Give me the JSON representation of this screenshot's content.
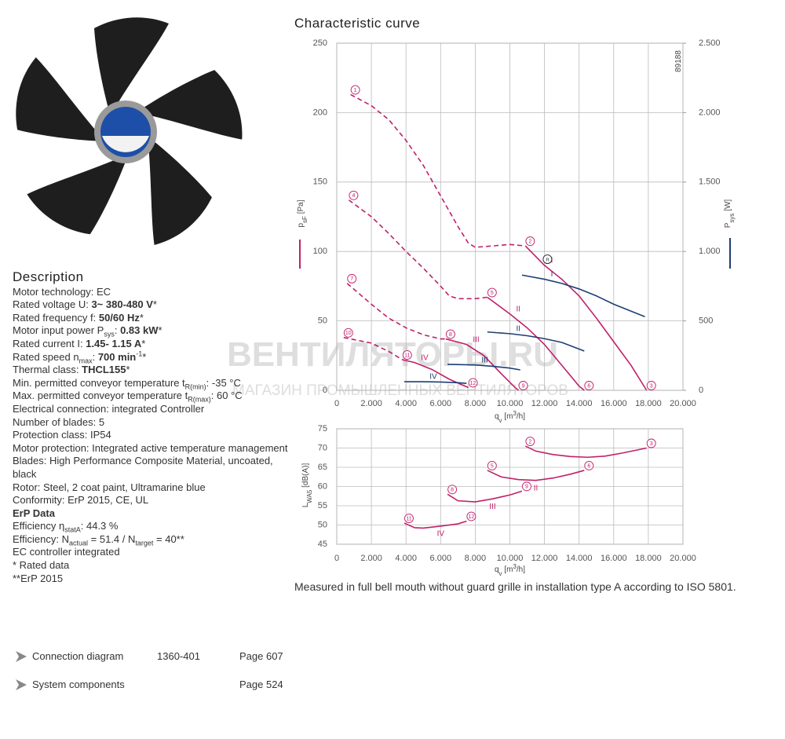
{
  "description": {
    "title": "Description",
    "lines": [
      {
        "parts": [
          {
            "t": "Motor technology: EC"
          }
        ]
      },
      {
        "parts": [
          {
            "t": "Rated voltage U: "
          },
          {
            "t": "3~ 380-480 V",
            "f": "b"
          },
          {
            "t": "*"
          }
        ]
      },
      {
        "parts": [
          {
            "t": "Rated frequency f: "
          },
          {
            "t": "50/60 Hz",
            "f": "b"
          },
          {
            "t": "*"
          }
        ]
      },
      {
        "parts": [
          {
            "t": "Motor input power P"
          },
          {
            "t": "sys",
            "f": "sub"
          },
          {
            "t": ": "
          },
          {
            "t": "0.83 kW",
            "f": "b"
          },
          {
            "t": "*"
          }
        ]
      },
      {
        "parts": [
          {
            "t": "Rated current I: "
          },
          {
            "t": "1.45- 1.15 A",
            "f": "b"
          },
          {
            "t": "*"
          }
        ]
      },
      {
        "parts": [
          {
            "t": "Rated speed n"
          },
          {
            "t": "max",
            "f": "sub"
          },
          {
            "t": ": "
          },
          {
            "t": "700 min",
            "f": "b"
          },
          {
            "t": "-1",
            "f": "sup"
          },
          {
            "t": "*"
          }
        ]
      },
      {
        "parts": [
          {
            "t": "Thermal class: "
          },
          {
            "t": "THCL155",
            "f": "b"
          },
          {
            "t": "*"
          }
        ]
      },
      {
        "parts": [
          {
            "t": "Min. permitted conveyor temperature t"
          },
          {
            "t": "R(min)",
            "f": "sub"
          },
          {
            "t": ": -35  °C"
          }
        ]
      },
      {
        "parts": [
          {
            "t": "Max. permitted conveyor temperature t"
          },
          {
            "t": "R(max)",
            "f": "sub"
          },
          {
            "t": ": 60  °C"
          }
        ]
      },
      {
        "parts": [
          {
            "t": "Electrical connection: integrated Controller"
          }
        ]
      },
      {
        "parts": [
          {
            "t": "Number of blades: 5"
          }
        ]
      },
      {
        "parts": [
          {
            "t": "Protection class: IP54"
          }
        ]
      },
      {
        "parts": [
          {
            "t": "Motor protection: Integrated active temperature management"
          }
        ]
      },
      {
        "parts": [
          {
            "t": "Blades: High Performance Composite Material, uncoated, black"
          }
        ]
      },
      {
        "parts": [
          {
            "t": "Rotor: Steel, 2 coat paint, Ultramarine blue"
          }
        ]
      },
      {
        "parts": [
          {
            "t": "Conformity: ErP 2015, CE, UL"
          }
        ]
      },
      {
        "parts": [
          {
            "t": "ErP Data",
            "f": "b"
          }
        ]
      },
      {
        "parts": [
          {
            "t": "Efficiency η"
          },
          {
            "t": "statA",
            "f": "sub"
          },
          {
            "t": ": 44.3 %"
          }
        ]
      },
      {
        "parts": [
          {
            "t": "Efficiency: N"
          },
          {
            "t": "actual",
            "f": "sub"
          },
          {
            "t": " = 51.4 / N"
          },
          {
            "t": "target",
            "f": "sub"
          },
          {
            "t": " = 40**"
          }
        ]
      },
      {
        "parts": [
          {
            "t": "EC controller integrated"
          }
        ]
      },
      {
        "parts": [
          {
            "t": "* Rated data"
          }
        ]
      },
      {
        "parts": [
          {
            "t": "**ErP 2015"
          }
        ]
      }
    ]
  },
  "links": [
    {
      "label": "Connection diagram",
      "code": "1360-401",
      "page": "Page 607"
    },
    {
      "label": "System components",
      "page": "Page 524"
    }
  ],
  "watermark": {
    "brand": "ВЕНТИЛЯТОРЫ.RU",
    "tagline": "МАГАЗИН ПРОМЫШЛЕННЫХ ВЕНТИЛЯТОРОВ"
  },
  "note": "Measured in full bell mouth without guard grille in installation type A according to ISO 5801.",
  "chart_data": [
    {
      "type": "line",
      "title": "Characteristic curve",
      "code": "89188",
      "xlabel": [
        {
          "t": "q"
        },
        {
          "t": "v",
          "f": "sub"
        },
        {
          "t": " [m"
        },
        {
          "t": "3",
          "f": "sup"
        },
        {
          "t": "/h]"
        }
      ],
      "ylabel": [
        {
          "t": "p"
        },
        {
          "t": "sF",
          "f": "sub"
        },
        {
          "t": " [Pa]"
        }
      ],
      "ylabel_color": "#c0206a",
      "y2label": [
        {
          "t": "P"
        },
        {
          "t": "sys",
          "f": "sub"
        },
        {
          "t": " [W]"
        }
      ],
      "y2label_color": "#1f3f73",
      "grid": true,
      "xlim": [
        0,
        20000
      ],
      "xticks": [
        0,
        {
          "value": 2000,
          "label": "2.000"
        },
        {
          "value": 4000,
          "label": "4.000"
        },
        {
          "value": 6000,
          "label": "6.000"
        },
        {
          "value": 8000,
          "label": "8.000"
        },
        {
          "value": 10000,
          "label": "10.000"
        },
        {
          "value": 12000,
          "label": "12.000"
        },
        {
          "value": 14000,
          "label": "14.000"
        },
        {
          "value": 16000,
          "label": "16.000"
        },
        {
          "value": 18000,
          "label": "18.000"
        },
        {
          "value": 20000,
          "label": "20.000"
        }
      ],
      "ylim": [
        0,
        250
      ],
      "yticks": [
        0,
        50,
        100,
        150,
        200,
        250
      ],
      "y2lim": [
        0,
        2500
      ],
      "y2ticks": [
        0,
        500,
        {
          "value": 1000,
          "label": "1.000"
        },
        {
          "value": 1500,
          "label": "1.500"
        },
        {
          "value": 2000,
          "label": "2.000"
        },
        {
          "value": 2500,
          "label": "2.500"
        }
      ],
      "series": [
        {
          "name": "I",
          "color": "#c0206a",
          "segments": [
            {
              "style": "dashed",
              "x": [
                800,
                2000,
                3000,
                4000,
                5000,
                6000,
                7000,
                7600,
                8000,
                9000,
                10000,
                10900
              ],
              "values": [
                213,
                205,
                195,
                180,
                162,
                140,
                118,
                106,
                103,
                104,
                105,
                104
              ]
            },
            {
              "style": "solid",
              "x": [
                10900,
                12000,
                13000,
                14000,
                15000,
                16000,
                17000,
                17900
              ],
              "values": [
                104,
                90,
                80,
                68,
                52,
                35,
                18,
                0
              ]
            }
          ],
          "points": [
            {
              "label": "1",
              "x": 800,
              "value": 213
            },
            {
              "label": "2",
              "x": 10900,
              "value": 104
            },
            {
              "label": "n",
              "x": 11900,
              "value": 91,
              "color": "#222"
            },
            {
              "label": "3",
              "x": 17900,
              "value": 0
            }
          ]
        },
        {
          "name": "II",
          "color": "#c0206a",
          "segments": [
            {
              "style": "dashed",
              "x": [
                700,
                2000,
                3000,
                4000,
                5000,
                6000,
                6500,
                7000,
                8000,
                8700
              ],
              "values": [
                137,
                125,
                113,
                100,
                88,
                75,
                68,
                66,
                66,
                67
              ]
            },
            {
              "style": "solid",
              "x": [
                8700,
                10000,
                11000,
                12000,
                13000,
                14000,
                14300
              ],
              "values": [
                67,
                55,
                45,
                33,
                18,
                3,
                0
              ]
            }
          ],
          "points": [
            {
              "label": "4",
              "x": 700,
              "value": 137
            },
            {
              "label": "5",
              "x": 8700,
              "value": 67
            },
            {
              "label": "6",
              "x": 14300,
              "value": 0
            }
          ]
        },
        {
          "name": "III",
          "color": "#c0206a",
          "segments": [
            {
              "style": "dashed",
              "x": [
                600,
                2000,
                3000,
                4000,
                5000,
                6000,
                6300
              ],
              "values": [
                77,
                62,
                52,
                45,
                40,
                37,
                37
              ]
            },
            {
              "style": "solid",
              "x": [
                6300,
                7500,
                8500,
                9500,
                10300,
                10500
              ],
              "values": [
                37,
                33,
                25,
                12,
                2,
                0
              ]
            }
          ],
          "points": [
            {
              "label": "7",
              "x": 600,
              "value": 77
            },
            {
              "label": "8",
              "x": 6300,
              "value": 37
            },
            {
              "label": "9",
              "x": 10500,
              "value": 0
            }
          ]
        },
        {
          "name": "IV",
          "color": "#c0206a",
          "segments": [
            {
              "style": "dashed",
              "x": [
                400,
                2000,
                3000,
                3800
              ],
              "values": [
                38,
                34,
                28,
                22
              ]
            },
            {
              "style": "solid",
              "x": [
                3800,
                4500,
                5500,
                6500,
                7600
              ],
              "values": [
                22,
                20,
                15,
                8,
                2
              ]
            }
          ],
          "points": [
            {
              "label": "10",
              "x": 400,
              "value": 38
            },
            {
              "label": "11",
              "x": 3800,
              "value": 22
            },
            {
              "label": "12",
              "x": 7600,
              "value": 2
            }
          ]
        },
        {
          "name": "I",
          "axis": "y2",
          "color": "#1f3f73",
          "segments": [
            {
              "style": "solid",
              "x": [
                10700,
                12000,
                13000,
                14000,
                15000,
                16000,
                17800
              ],
              "values": [
                830,
                800,
                770,
                730,
                680,
                620,
                530
              ]
            }
          ]
        },
        {
          "name": "II",
          "axis": "y2",
          "color": "#1f3f73",
          "segments": [
            {
              "style": "solid",
              "x": [
                8700,
                10000,
                11000,
                12000,
                13000,
                14300
              ],
              "values": [
                420,
                408,
                393,
                372,
                345,
                283
              ]
            }
          ]
        },
        {
          "name": "III",
          "axis": "y2",
          "color": "#1f3f73",
          "segments": [
            {
              "style": "solid",
              "x": [
                6400,
                8000,
                9000,
                10000,
                10600
              ],
              "values": [
                187,
                183,
                173,
                160,
                147
              ]
            }
          ]
        },
        {
          "name": "IV",
          "axis": "y2",
          "color": "#1f3f73",
          "segments": [
            {
              "style": "solid",
              "x": [
                3900,
                5000,
                6000,
                7000,
                7500
              ],
              "values": [
                62,
                62,
                60,
                55,
                50
              ]
            }
          ]
        }
      ]
    },
    {
      "type": "line",
      "xlabel": [
        {
          "t": "q"
        },
        {
          "t": "v",
          "f": "sub"
        },
        {
          "t": " [m"
        },
        {
          "t": "3",
          "f": "sup"
        },
        {
          "t": "/h]"
        }
      ],
      "ylabel": [
        {
          "t": "L"
        },
        {
          "t": "WA5",
          "f": "sub"
        },
        {
          "t": " [dB(A)]"
        }
      ],
      "grid": true,
      "xlim": [
        0,
        20000
      ],
      "xticks": [
        0,
        {
          "value": 2000,
          "label": "2.000"
        },
        {
          "value": 4000,
          "label": "4.000"
        },
        {
          "value": 6000,
          "label": "6.000"
        },
        {
          "value": 8000,
          "label": "8.000"
        },
        {
          "value": 10000,
          "label": "10.000"
        },
        {
          "value": 12000,
          "label": "12.000"
        },
        {
          "value": 14000,
          "label": "14.000"
        },
        {
          "value": 16000,
          "label": "16.000"
        },
        {
          "value": 18000,
          "label": "18.000"
        },
        {
          "value": 20000,
          "label": "20.000"
        }
      ],
      "ylim": [
        45,
        75
      ],
      "yticks": [
        45,
        50,
        55,
        60,
        65,
        70,
        75
      ],
      "series": [
        {
          "name": "I",
          "color": "#c0206a",
          "segments": [
            {
              "style": "solid",
              "x": [
                10900,
                11500,
                12500,
                13500,
                14500,
                15500,
                16500,
                17900
              ],
              "values": [
                70.5,
                69.2,
                68.3,
                67.8,
                67.6,
                67.9,
                68.7,
                70
              ]
            }
          ],
          "points": [
            {
              "label": "2",
              "x": 10900,
              "value": 70.5
            },
            {
              "label": "3",
              "x": 17900,
              "value": 70
            }
          ]
        },
        {
          "name": "II",
          "color": "#c0206a",
          "segments": [
            {
              "style": "solid",
              "x": [
                8700,
                9500,
                10500,
                11500,
                12500,
                13500,
                14300
              ],
              "values": [
                64.2,
                62.5,
                61.8,
                61.6,
                62.2,
                63.2,
                64.2
              ]
            }
          ],
          "points": [
            {
              "label": "5",
              "x": 8700,
              "value": 64.2
            },
            {
              "label": "6",
              "x": 14300,
              "value": 64.2
            }
          ]
        },
        {
          "name": "III",
          "color": "#c0206a",
          "segments": [
            {
              "style": "solid",
              "x": [
                6400,
                7000,
                8000,
                9000,
                10000,
                10700
              ],
              "values": [
                58,
                56.3,
                56,
                56.8,
                57.8,
                58.8
              ]
            }
          ],
          "points": [
            {
              "label": "8",
              "x": 6400,
              "value": 58
            },
            {
              "label": "9",
              "x": 10700,
              "value": 58.8
            }
          ]
        },
        {
          "name": "IV",
          "color": "#c0206a",
          "segments": [
            {
              "style": "solid",
              "x": [
                3900,
                4500,
                5000,
                6000,
                7000,
                7500
              ],
              "values": [
                50.5,
                49.3,
                49.2,
                49.7,
                50.3,
                51
              ]
            }
          ],
          "points": [
            {
              "label": "11",
              "x": 3900,
              "value": 50.5
            },
            {
              "label": "12",
              "x": 7500,
              "value": 51
            }
          ]
        }
      ]
    }
  ]
}
